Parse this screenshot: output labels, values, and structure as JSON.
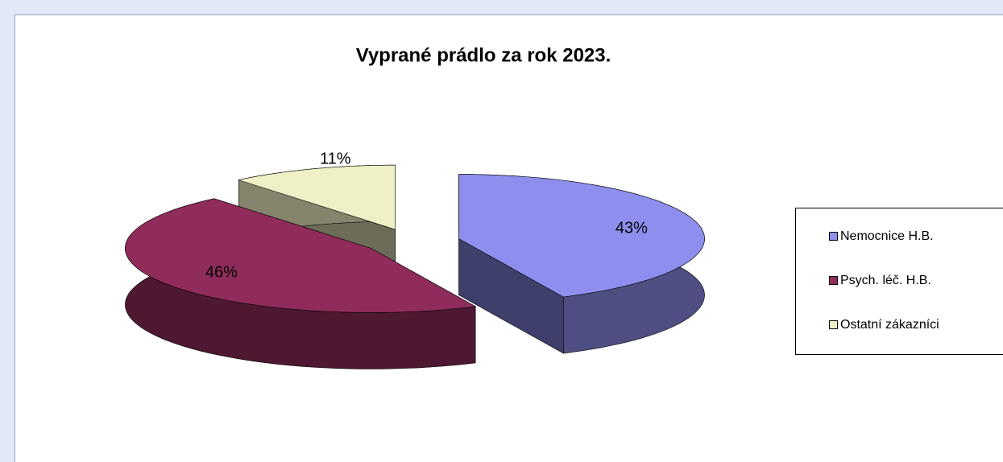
{
  "chart_data": {
    "type": "pie",
    "title": "Vyprané prádlo za rok 2023.",
    "categories": [
      "Nemocnice H.B.",
      "Psych. léč. H.B.",
      "Ostatní zákazníci"
    ],
    "values": [
      43,
      46,
      11
    ],
    "value_labels": [
      "43%",
      "46%",
      "11%"
    ],
    "colors": [
      "#8e8eee",
      "#8f2c5b",
      "#f0f0c6"
    ],
    "legend": "right"
  }
}
